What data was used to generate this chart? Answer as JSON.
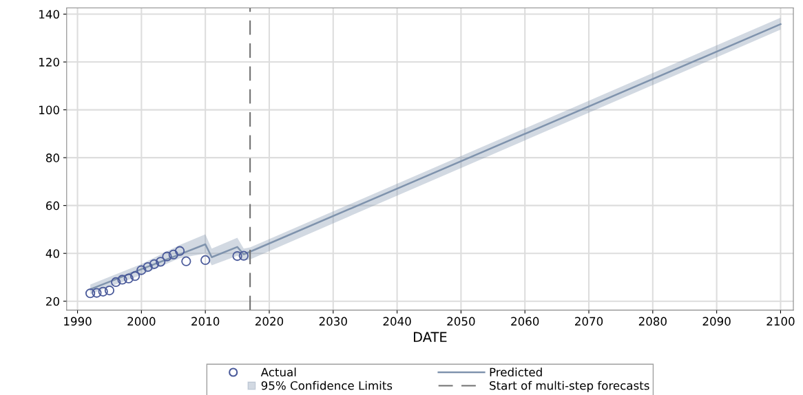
{
  "chart_data": {
    "type": "line",
    "xlabel": "DATE",
    "xlim": [
      1988.3,
      2102
    ],
    "xticks": [
      1990,
      2000,
      2010,
      2020,
      2030,
      2040,
      2050,
      2060,
      2070,
      2080,
      2090,
      2100
    ],
    "ylim": [
      16.3,
      142.6
    ],
    "yticks": [
      20,
      40,
      60,
      80,
      100,
      120,
      140
    ],
    "grid": true,
    "legend": "bottom",
    "annotations": [
      "95% Confidence Limits"
    ],
    "series": [
      {
        "name": "Predicted",
        "color": "#7f93ad",
        "marker": "none",
        "x": [
          1992,
          2000,
          2006,
          2010,
          2011,
          2015,
          2016,
          2017,
          2100
        ],
        "values": [
          25,
          33.4,
          39.6,
          43.8,
          38.4,
          42.7,
          39.6,
          40.7,
          135.8
        ],
        "lower": [
          23,
          31,
          38,
          40,
          35,
          39,
          37,
          37.5,
          133.5
        ],
        "upper": [
          27,
          35.5,
          43.5,
          48,
          42,
          46.5,
          42,
          42.5,
          138.5
        ]
      },
      {
        "name": "Actual",
        "type": "scatter",
        "color": "#4a5a9a",
        "marker": "circle",
        "x": [
          1992,
          1993,
          1994,
          1995,
          1996,
          1997,
          1998,
          1999,
          2000,
          2001,
          2002,
          2003,
          2004,
          2005,
          2006,
          2007,
          2010,
          2015,
          2016
        ],
        "values": [
          23.3,
          23.5,
          24,
          24.5,
          28,
          29,
          29.5,
          30.5,
          33,
          34.3,
          35.5,
          36.5,
          38.7,
          39.5,
          41,
          36.7,
          37.2,
          38.9,
          39
        ]
      }
    ],
    "ref_lines": [
      {
        "axis": "x",
        "value": 2017,
        "label": "Start of multi-step forecasts",
        "color": "#707070",
        "line_style": "dashed"
      }
    ]
  }
}
